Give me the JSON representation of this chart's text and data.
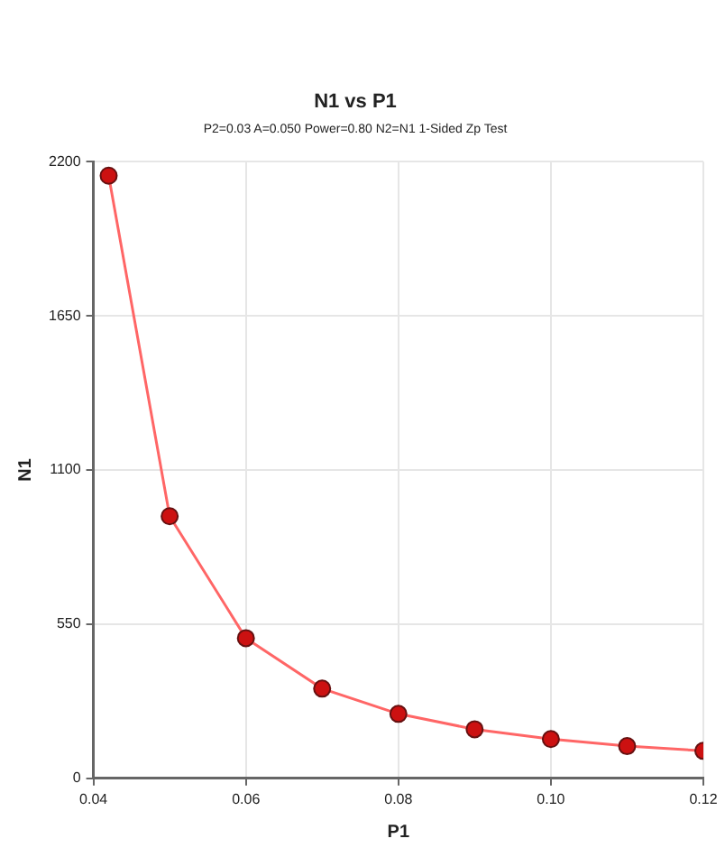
{
  "chart_data": {
    "type": "line",
    "title": "N1 vs P1",
    "subtitle": "P2=0.03 A=0.050 Power=0.80 N2=N1 1-Sided Zp Test",
    "xlabel": "P1",
    "ylabel": "N1",
    "x": [
      0.042,
      0.05,
      0.06,
      0.07,
      0.08,
      0.09,
      0.1,
      0.11,
      0.12
    ],
    "series": [
      {
        "color": "#ff6666",
        "values": [
          2150,
          935,
          500,
          320,
          230,
          175,
          140,
          115,
          98
        ]
      }
    ],
    "xlim": [
      0.04,
      0.12
    ],
    "xticks": [
      {
        "value": 0.04,
        "label": "0.04"
      },
      {
        "value": 0.06,
        "label": "0.06"
      },
      {
        "value": 0.08,
        "label": "0.08"
      },
      {
        "value": 0.1,
        "label": "0.10"
      },
      {
        "value": 0.12,
        "label": "0.12"
      }
    ],
    "ylim": [
      0,
      2200
    ],
    "yticks": [
      0,
      550,
      1100,
      1650,
      2200
    ],
    "grid": true,
    "legend": false,
    "marker": "circle",
    "line_style": "solid"
  }
}
